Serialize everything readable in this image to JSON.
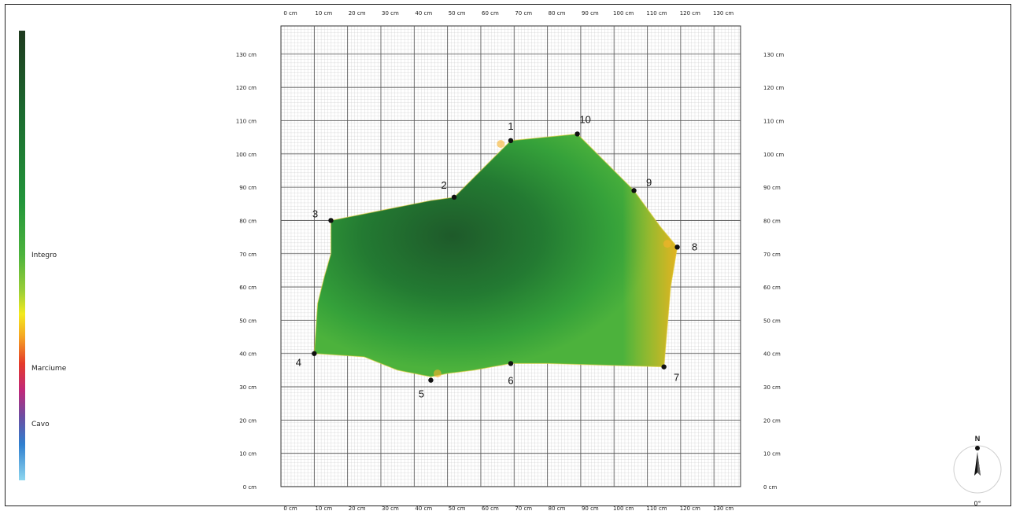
{
  "legend": {
    "labels": [
      "Integro",
      "Marciume",
      "Cavo"
    ],
    "colors": [
      "#1f3a1f",
      "#1c6a2f",
      "#22953a",
      "#4db33d",
      "#f3ea1e",
      "#f5a623",
      "#e53b2a",
      "#6a4fa3",
      "#2f7fcf",
      "#8ed6ef"
    ]
  },
  "grid": {
    "x_ticks": [
      "0 cm",
      "10 cm",
      "20 cm",
      "30 cm",
      "40 cm",
      "50 cm",
      "60 cm",
      "70 cm",
      "80 cm",
      "90 cm",
      "100 cm",
      "110 cm",
      "120 cm",
      "130 cm"
    ],
    "y_ticks": [
      "0 cm",
      "10 cm",
      "20 cm",
      "30 cm",
      "40 cm",
      "50 cm",
      "60 cm",
      "70 cm",
      "80 cm",
      "90 cm",
      "100 cm",
      "110 cm",
      "120 cm",
      "130 cm"
    ]
  },
  "points": [
    {
      "label": "1",
      "x": 69,
      "y": 104
    },
    {
      "label": "2",
      "x": 52,
      "y": 87
    },
    {
      "label": "3",
      "x": 15,
      "y": 80
    },
    {
      "label": "4",
      "x": 10,
      "y": 40
    },
    {
      "label": "5",
      "x": 45,
      "y": 32
    },
    {
      "label": "6",
      "x": 69,
      "y": 37
    },
    {
      "label": "7",
      "x": 115,
      "y": 36
    },
    {
      "label": "8",
      "x": 119,
      "y": 72
    },
    {
      "label": "9",
      "x": 106,
      "y": 89
    },
    {
      "label": "10",
      "x": 89,
      "y": 106
    }
  ],
  "compass": {
    "north": "N",
    "angle": "0°"
  }
}
